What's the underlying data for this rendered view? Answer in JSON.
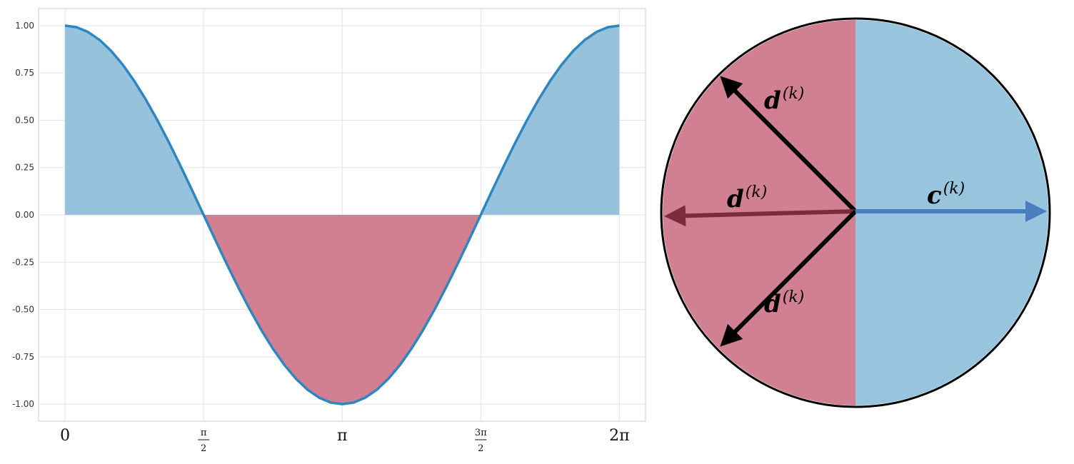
{
  "chart_data": {
    "type": "area",
    "function": "cos",
    "x": [
      0.0,
      0.1309,
      0.2618,
      0.3927,
      0.5236,
      0.6545,
      0.7854,
      0.9163,
      1.0472,
      1.1781,
      1.309,
      1.4399,
      1.5708,
      1.7017,
      1.8326,
      1.9635,
      2.0944,
      2.2253,
      2.3562,
      2.4871,
      2.618,
      2.7489,
      2.8798,
      3.0107,
      3.1416,
      3.2725,
      3.4034,
      3.5343,
      3.6652,
      3.7961,
      3.927,
      4.0579,
      4.1888,
      4.3197,
      4.4506,
      4.5815,
      4.7124,
      4.8433,
      4.9742,
      5.1051,
      5.236,
      5.3669,
      5.4978,
      5.6287,
      5.7596,
      5.8905,
      6.0214,
      6.1523,
      6.2832
    ],
    "y": [
      1.0,
      0.9914,
      0.9659,
      0.9239,
      0.866,
      0.7934,
      0.7071,
      0.6088,
      0.5,
      0.3827,
      0.2588,
      0.1305,
      0.0,
      -0.1305,
      -0.2588,
      -0.3827,
      -0.5,
      -0.6088,
      -0.7071,
      -0.7934,
      -0.866,
      -0.9239,
      -0.9659,
      -0.9914,
      -1.0,
      -0.9914,
      -0.9659,
      -0.9239,
      -0.866,
      -0.7934,
      -0.7071,
      -0.6088,
      -0.5,
      -0.3827,
      -0.2588,
      -0.1305,
      0.0,
      0.1305,
      0.2588,
      0.3827,
      0.5,
      0.6088,
      0.7071,
      0.7934,
      0.866,
      0.9239,
      0.9659,
      0.9914,
      1.0
    ],
    "xlim": [
      -0.3,
      6.58
    ],
    "ylim": [
      -1.09,
      1.09
    ],
    "yticks": [
      1.0,
      0.75,
      0.5,
      0.25,
      0.0,
      -0.25,
      -0.5,
      -0.75,
      -1.0
    ],
    "ytick_labels": [
      "1.00",
      "0.75",
      "0.50",
      "0.25",
      "0.00",
      "-0.25",
      "-0.50",
      "-0.75",
      "-1.00"
    ],
    "xticks": [
      0.0,
      1.5708,
      3.1416,
      4.7124,
      6.2832
    ],
    "xtick_labels": [
      {
        "text": "0"
      },
      {
        "num": "π",
        "den": "2"
      },
      {
        "text": "π"
      },
      {
        "num": "3π",
        "den": "2"
      },
      {
        "text": "2π"
      }
    ],
    "grid": true,
    "line_color": "#2e86c1",
    "positive_fill": "#96c2dc",
    "negative_fill": "#d17f91"
  },
  "diagram": {
    "positive_half_color": "#98c4dd",
    "negative_half_color": "#d18092",
    "vectors": [
      {
        "label": "d",
        "superscript": "(k)",
        "angle_deg": 135,
        "color": "#000000"
      },
      {
        "label": "d",
        "superscript": "(k)",
        "angle_deg": 181.5,
        "color": "#7c2a3e"
      },
      {
        "label": "d",
        "superscript": "(k)",
        "angle_deg": 225,
        "color": "#000000"
      },
      {
        "label": "c",
        "superscript": "(k)",
        "angle_deg": 0,
        "color": "#4a7fbe"
      }
    ]
  }
}
